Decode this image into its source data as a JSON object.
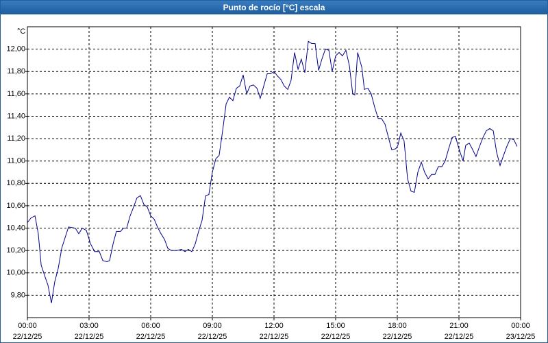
{
  "chart_data": {
    "type": "line",
    "title": "Punto de rocío [°C] escala",
    "y_unit": "°C",
    "color": "#00008b",
    "grid": true,
    "xlim": [
      0,
      24
    ],
    "ylim": [
      9.6,
      12.2
    ],
    "xticks": [
      {
        "value": 0,
        "label": "00:00",
        "date": "22/12/25"
      },
      {
        "value": 3,
        "label": "03:00",
        "date": "22/12/25"
      },
      {
        "value": 6,
        "label": "06:00",
        "date": "22/12/25"
      },
      {
        "value": 9,
        "label": "09:00",
        "date": "22/12/25"
      },
      {
        "value": 12,
        "label": "12:00",
        "date": "22/12/25"
      },
      {
        "value": 15,
        "label": "15:00",
        "date": "22/12/25"
      },
      {
        "value": 18,
        "label": "18:00",
        "date": "22/12/25"
      },
      {
        "value": 21,
        "label": "21:00",
        "date": "22/12/25"
      },
      {
        "value": 24,
        "label": "00:00",
        "date": "23/12/25"
      }
    ],
    "yticks": [
      {
        "value": 9.8,
        "label": "9,80"
      },
      {
        "value": 10.0,
        "label": "10,00"
      },
      {
        "value": 10.2,
        "label": "10,20"
      },
      {
        "value": 10.4,
        "label": "10,40"
      },
      {
        "value": 10.6,
        "label": "10,60"
      },
      {
        "value": 10.8,
        "label": "10,80"
      },
      {
        "value": 11.0,
        "label": "11,00"
      },
      {
        "value": 11.2,
        "label": "11,20"
      },
      {
        "value": 11.4,
        "label": "11,40"
      },
      {
        "value": 11.6,
        "label": "11,60"
      },
      {
        "value": 11.8,
        "label": "11,80"
      },
      {
        "value": 12.0,
        "label": "12,00"
      }
    ],
    "x": [
      0,
      0.17,
      0.37,
      0.53,
      0.67,
      0.83,
      1,
      1.17,
      1.33,
      1.5,
      1.67,
      2,
      2.33,
      2.5,
      2.67,
      2.87,
      3.07,
      3.27,
      3.5,
      3.67,
      3.87,
      4,
      4.17,
      4.33,
      4.53,
      4.67,
      4.83,
      5,
      5.17,
      5.33,
      5.5,
      5.67,
      5.83,
      6,
      6.17,
      6.33,
      6.5,
      6.67,
      6.83,
      7,
      7.27,
      7.5,
      7.67,
      7.83,
      8,
      8.17,
      8.33,
      8.5,
      8.67,
      8.83,
      9,
      9.17,
      9.33,
      9.5,
      9.67,
      9.83,
      10,
      10.17,
      10.33,
      10.5,
      10.67,
      10.83,
      11,
      11.17,
      11.33,
      11.5,
      11.67,
      11.83,
      12,
      12.17,
      12.33,
      12.5,
      12.67,
      12.83,
      13,
      13.17,
      13.33,
      13.5,
      13.67,
      13.83,
      14,
      14.17,
      14.33,
      14.5,
      14.67,
      14.83,
      15,
      15.17,
      15.33,
      15.5,
      15.67,
      15.83,
      15.93,
      16.07,
      16.27,
      16.4,
      16.57,
      16.73,
      16.9,
      17.07,
      17.23,
      17.4,
      17.57,
      17.73,
      17.93,
      18.03,
      18.17,
      18.33,
      18.5,
      18.67,
      18.83,
      19,
      19.17,
      19.33,
      19.5,
      19.67,
      19.83,
      20,
      20.17,
      20.33,
      20.5,
      20.67,
      20.83,
      21,
      21.2,
      21.33,
      21.5,
      21.67,
      21.83,
      22,
      22.17,
      22.33,
      22.5,
      22.67,
      22.83,
      23,
      23.17,
      23.33,
      23.5,
      23.67,
      23.83
    ],
    "values": [
      10.45,
      10.49,
      10.51,
      10.35,
      10.07,
      9.98,
      9.89,
      9.73,
      9.92,
      10.04,
      10.22,
      10.41,
      10.4,
      10.35,
      10.4,
      10.38,
      10.26,
      10.19,
      10.19,
      10.11,
      10.1,
      10.11,
      10.26,
      10.37,
      10.37,
      10.4,
      10.4,
      10.51,
      10.59,
      10.67,
      10.69,
      10.61,
      10.59,
      10.51,
      10.48,
      10.41,
      10.35,
      10.3,
      10.22,
      10.2,
      10.2,
      10.21,
      10.19,
      10.21,
      10.19,
      10.26,
      10.37,
      10.47,
      10.69,
      10.7,
      10.9,
      11.02,
      11.05,
      11.27,
      11.51,
      11.57,
      11.54,
      11.65,
      11.67,
      11.77,
      11.6,
      11.67,
      11.68,
      11.65,
      11.56,
      11.67,
      11.78,
      11.78,
      11.8,
      11.76,
      11.73,
      11.67,
      11.64,
      11.72,
      11.97,
      11.82,
      11.91,
      11.79,
      12.07,
      12.05,
      12.05,
      11.81,
      11.91,
      12.0,
      11.99,
      11.8,
      11.94,
      11.97,
      11.94,
      11.99,
      11.85,
      11.6,
      11.59,
      11.97,
      11.84,
      11.64,
      11.65,
      11.6,
      11.48,
      11.38,
      11.38,
      11.33,
      11.21,
      11.1,
      11.11,
      11.14,
      11.25,
      11.18,
      10.84,
      10.73,
      10.72,
      10.9,
      10.99,
      10.9,
      10.84,
      10.88,
      10.88,
      10.95,
      10.95,
      11.0,
      11.11,
      11.21,
      11.22,
      11.11,
      11.0,
      11.14,
      11.16,
      11.1,
      11.04,
      11.13,
      11.21,
      11.27,
      11.29,
      11.27,
      11.08,
      10.96,
      11.05,
      11.13,
      11.2,
      11.19,
      11.13
    ]
  }
}
